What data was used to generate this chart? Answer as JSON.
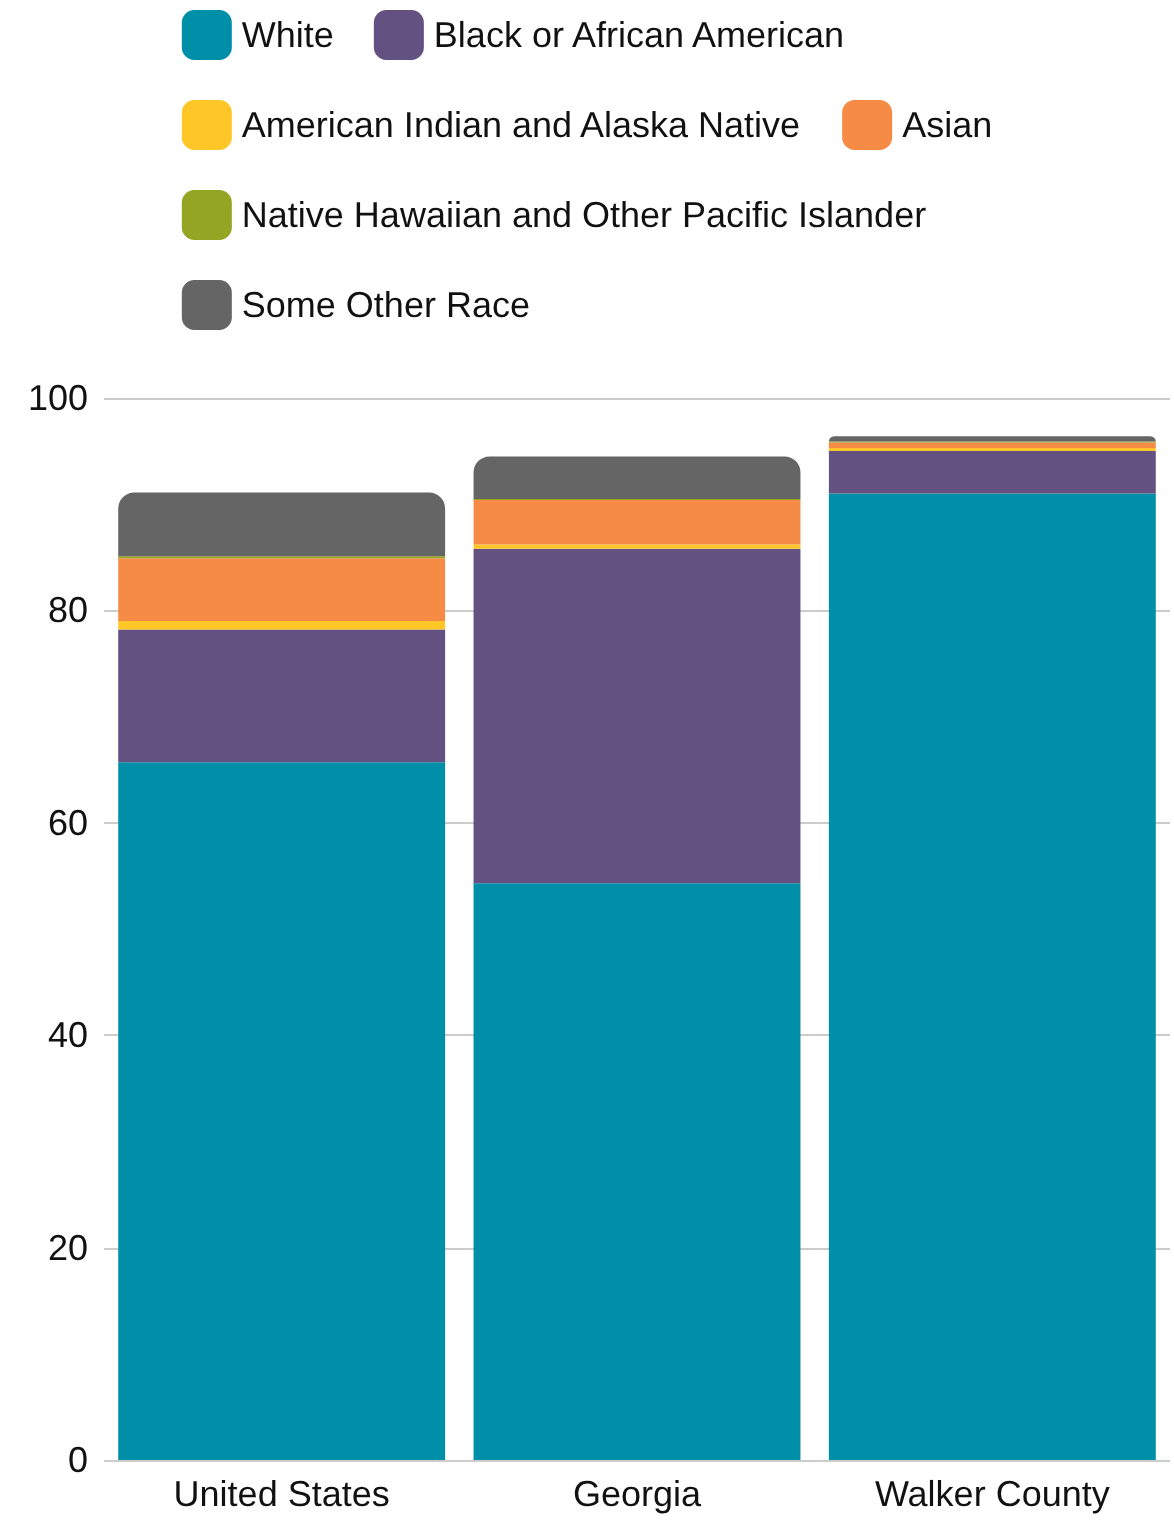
{
  "chart_data": {
    "type": "bar",
    "stacked": true,
    "categories": [
      "United States",
      "Georgia",
      "Walker County"
    ],
    "series": [
      {
        "name": "White",
        "color": "#008fa8",
        "values": [
          65.7,
          54.3,
          91.0
        ]
      },
      {
        "name": "Black or African American",
        "color": "#635182",
        "values": [
          12.5,
          31.5,
          4.0
        ]
      },
      {
        "name": "American Indian and Alaska Native",
        "color": "#ffc627",
        "values": [
          0.8,
          0.4,
          0.3
        ]
      },
      {
        "name": "Asian",
        "color": "#f68b46",
        "values": [
          5.9,
          4.2,
          0.5
        ]
      },
      {
        "name": "Native Hawaiian and Other Pacific Islander",
        "color": "#94a523",
        "values": [
          0.2,
          0.1,
          0.1
        ]
      },
      {
        "name": "Some Other Race",
        "color": "#656565",
        "values": [
          6.0,
          4.0,
          0.5
        ]
      }
    ],
    "ylim": [
      0,
      100
    ],
    "yticks": [
      0,
      20,
      40,
      60,
      80,
      100
    ],
    "grid": "y",
    "legend": "top"
  }
}
